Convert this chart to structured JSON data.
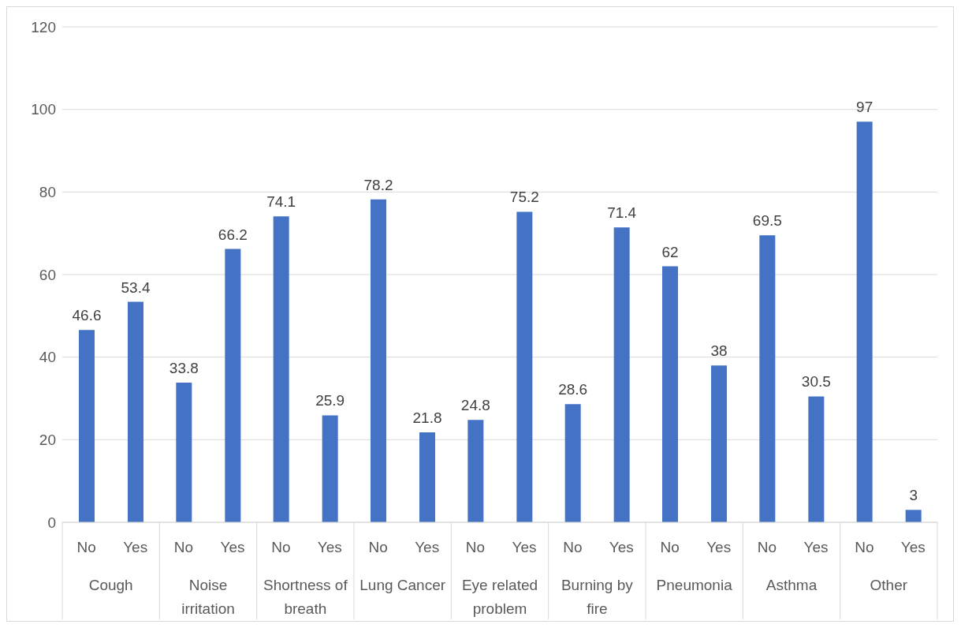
{
  "chart_data": {
    "type": "bar",
    "categories": [
      "Cough",
      "Noise irritation",
      "Shortness of breath",
      "Lung Cancer",
      "Eye related problem",
      "Burning by fire",
      "Pneumonia",
      "Asthma",
      "Other"
    ],
    "series": [
      {
        "name": "No",
        "color": "#4472c4",
        "values": [
          46.6,
          33.8,
          74.1,
          78.2,
          24.8,
          28.6,
          62,
          69.5,
          97
        ]
      },
      {
        "name": "Yes",
        "color": "#4472c4",
        "values": [
          53.4,
          66.2,
          25.9,
          21.8,
          75.2,
          71.4,
          38,
          30.5,
          3
        ]
      }
    ],
    "ylim": [
      0,
      120
    ],
    "yticks": [
      0,
      20,
      40,
      60,
      80,
      100,
      120
    ],
    "grid": "y",
    "data_labels": true
  }
}
